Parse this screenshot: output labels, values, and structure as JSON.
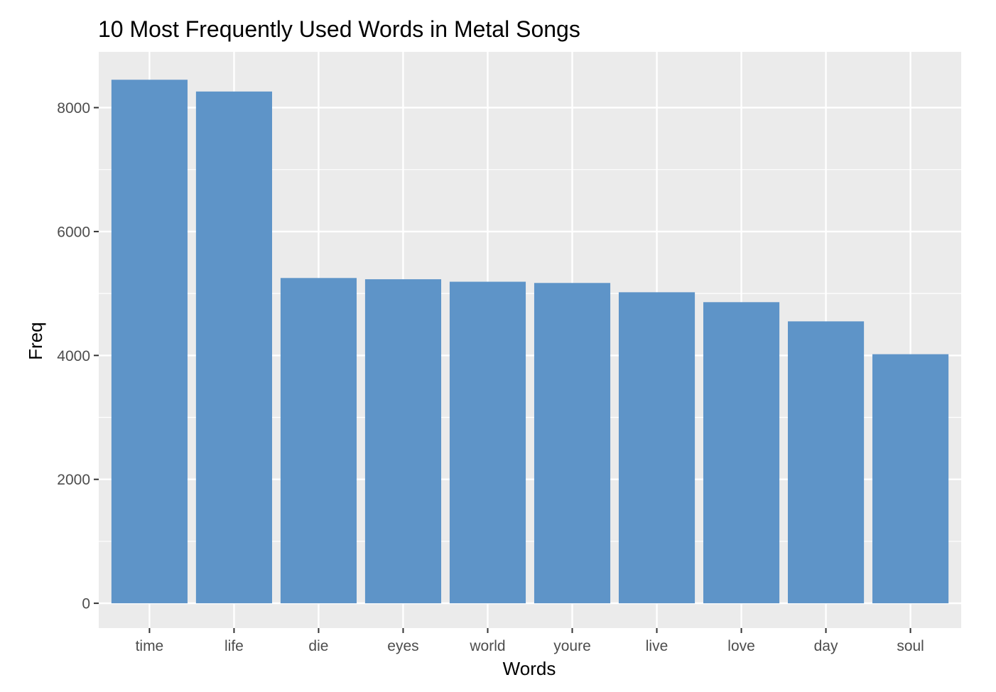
{
  "chart_data": {
    "type": "bar",
    "title": "10 Most Frequently Used Words in Metal Songs",
    "xlabel": "Words",
    "ylabel": "Freq",
    "categories": [
      "time",
      "life",
      "die",
      "eyes",
      "world",
      "youre",
      "live",
      "love",
      "day",
      "soul"
    ],
    "values": [
      8450,
      8260,
      5250,
      5230,
      5190,
      5170,
      5020,
      4860,
      4550,
      4020
    ],
    "yticks": [
      0,
      2000,
      4000,
      6000,
      8000
    ],
    "ylim": [
      -400,
      8900
    ],
    "grid": true,
    "legend": "none",
    "colors": {
      "bar": "#5e94c8",
      "panel": "#ebebeb",
      "gridline": "#ffffff",
      "tick_text": "#4d4d4d"
    }
  }
}
